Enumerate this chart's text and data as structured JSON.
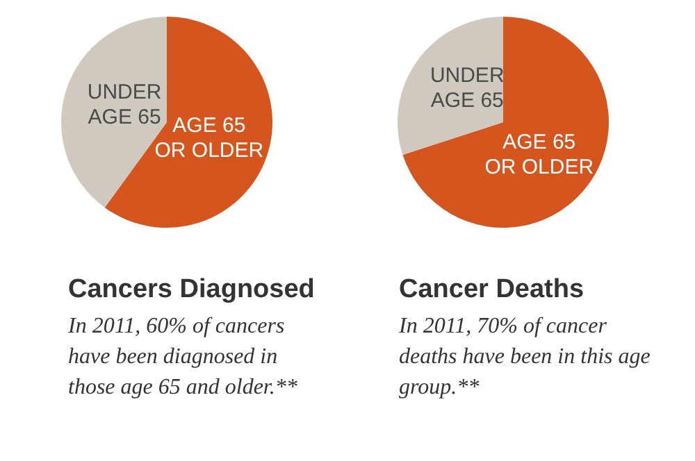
{
  "chart_data": [
    {
      "type": "pie",
      "title": "Cancers Diagnosed",
      "subtitle": "In 2011, 60% of cancers have been diagnosed in those age 65 and older.**",
      "categories": [
        "AGE 65\nOR OLDER",
        "UNDER\nAGE 65"
      ],
      "values": [
        60,
        40
      ],
      "colors": [
        "#d4561e",
        "#cfc9bf"
      ],
      "legend": false
    },
    {
      "type": "pie",
      "title": "Cancer Deaths",
      "subtitle": "In 2011, 70% of cancer deaths have been in this age group.**",
      "categories": [
        "AGE 65\nOR OLDER",
        "UNDER\nAGE 65"
      ],
      "values": [
        70,
        30
      ],
      "colors": [
        "#d4561e",
        "#cfc9bf"
      ],
      "legend": false
    }
  ]
}
